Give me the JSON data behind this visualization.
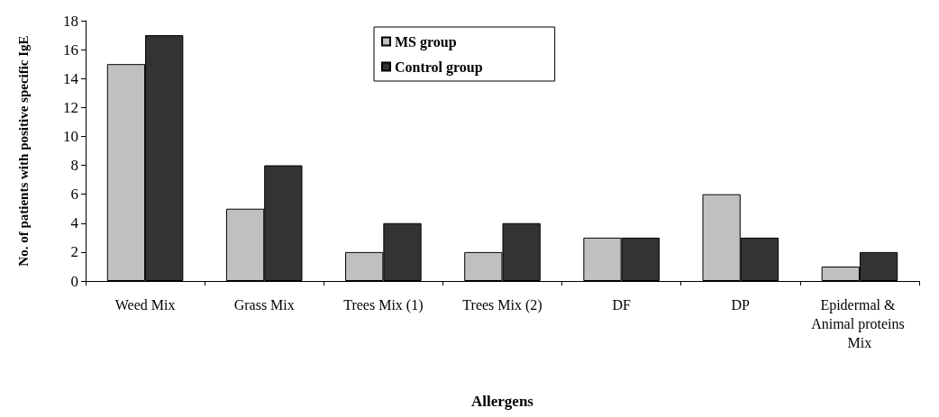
{
  "chart_data": {
    "type": "bar",
    "xlabel": "Allergens",
    "ylabel": "No. of patients with positive specific IgE",
    "categories": [
      "Weed Mix",
      "Grass Mix",
      "Trees Mix (1)",
      "Trees Mix (2)",
      "DF",
      "DP",
      "Epidermal & Animal proteins Mix"
    ],
    "series": [
      {
        "name": "MS group",
        "color": "#c0c0c0",
        "values": [
          15,
          5,
          2,
          2,
          3,
          6,
          1
        ]
      },
      {
        "name": "Control group",
        "color": "#333333",
        "values": [
          17,
          8,
          4,
          4,
          3,
          3,
          2
        ]
      }
    ],
    "ylim": [
      0,
      18
    ],
    "yticks": [
      0,
      2,
      4,
      6,
      8,
      10,
      12,
      14,
      16,
      18
    ],
    "grid": false,
    "legend": "top"
  }
}
